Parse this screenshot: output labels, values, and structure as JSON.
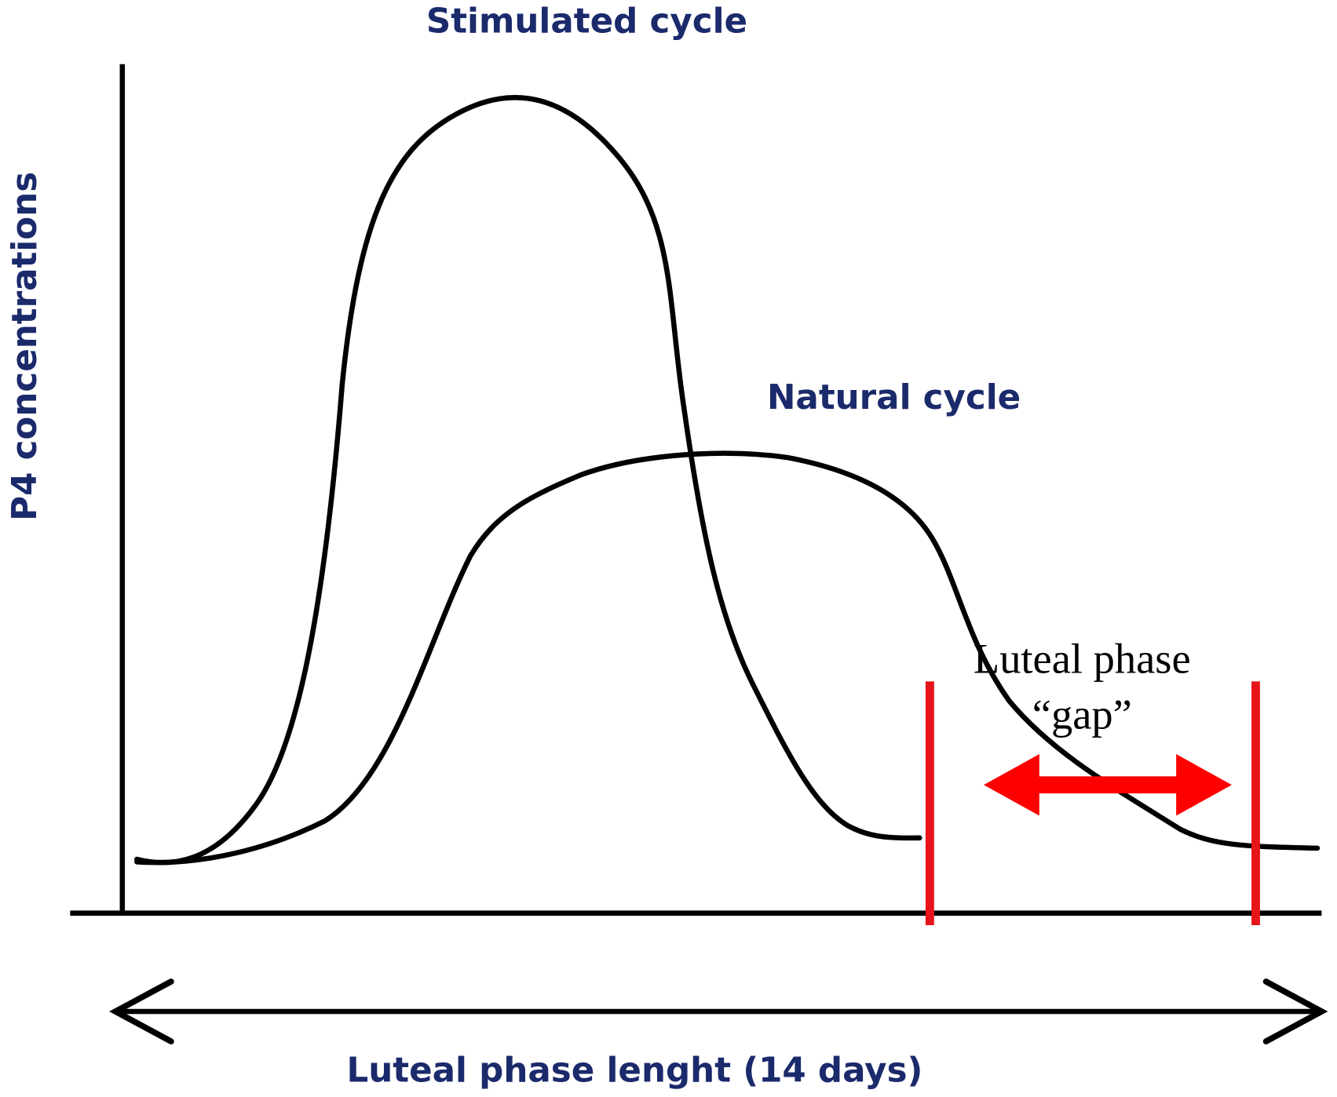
{
  "curves": [
    {
      "label": "Stimulated cycle"
    },
    {
      "label": "Natural cycle"
    }
  ],
  "y_axis": {
    "label": "P4 concentrations"
  },
  "x_axis": {
    "label": "Luteal phase lenght (14 days)"
  },
  "gap_annotation": {
    "lines": [
      "Luteal phase",
      "“gap”"
    ]
  }
}
